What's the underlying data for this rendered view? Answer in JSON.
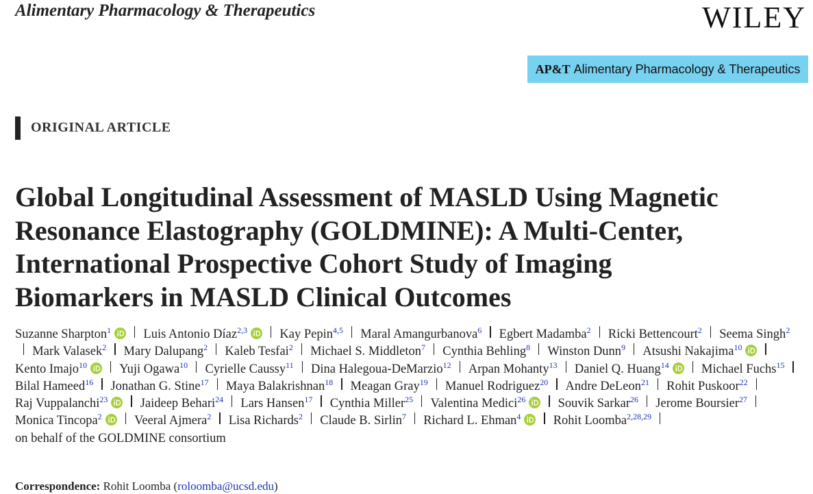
{
  "header": {
    "journal": "Alimentary Pharmacology & Therapeutics",
    "publisher": "WILEY"
  },
  "banner": {
    "logo": "AP&T",
    "text": "Alimentary Pharmacology & Therapeutics"
  },
  "section": "ORIGINAL ARTICLE",
  "title_lines": [
    "Global Longitudinal Assessment of MASLD Using Magnetic",
    "Resonance Elastography (GOLDMINE): A Multi-Center,",
    "International Prospective Cohort Study of Imaging",
    "Biomarkers in MASLD Clinical Outcomes"
  ],
  "authors": [
    {
      "name": "Suzanne Sharpton",
      "affil": "1",
      "orcid": true
    },
    {
      "name": "Luis Antonio Díaz",
      "affil": "2,3",
      "orcid": true
    },
    {
      "name": "Kay Pepin",
      "affil": "4,5",
      "orcid": false
    },
    {
      "name": "Maral Amangurbanova",
      "affil": "6",
      "orcid": false
    },
    {
      "name": "Egbert Madamba",
      "affil": "2",
      "orcid": false
    },
    {
      "name": "Ricki Bettencourt",
      "affil": "2",
      "orcid": false
    },
    {
      "name": "Seema Singh",
      "affil": "2",
      "orcid": false
    },
    {
      "name": "Mark Valasek",
      "affil": "2",
      "orcid": false
    },
    {
      "name": "Mary Dalupang",
      "affil": "2",
      "orcid": false
    },
    {
      "name": "Kaleb Tesfai",
      "affil": "2",
      "orcid": false
    },
    {
      "name": "Michael S. Middleton",
      "affil": "7",
      "orcid": false
    },
    {
      "name": "Cynthia Behling",
      "affil": "8",
      "orcid": false
    },
    {
      "name": "Winston Dunn",
      "affil": "9",
      "orcid": false
    },
    {
      "name": "Atsushi Nakajima",
      "affil": "10",
      "orcid": true
    },
    {
      "name": "Kento Imajo",
      "affil": "10",
      "orcid": true
    },
    {
      "name": "Yuji Ogawa",
      "affil": "10",
      "orcid": false
    },
    {
      "name": "Cyrielle Caussy",
      "affil": "11",
      "orcid": false
    },
    {
      "name": "Dina Halegoua-DeMarzio",
      "affil": "12",
      "orcid": false
    },
    {
      "name": "Arpan Mohanty",
      "affil": "13",
      "orcid": false
    },
    {
      "name": "Daniel Q. Huang",
      "affil": "14",
      "orcid": true
    },
    {
      "name": "Michael Fuchs",
      "affil": "15",
      "orcid": false
    },
    {
      "name": "Bilal Hameed",
      "affil": "16",
      "orcid": false
    },
    {
      "name": "Jonathan G. Stine",
      "affil": "17",
      "orcid": false
    },
    {
      "name": "Maya Balakrishnan",
      "affil": "18",
      "orcid": false
    },
    {
      "name": "Meagan Gray",
      "affil": "19",
      "orcid": false
    },
    {
      "name": "Manuel Rodriguez",
      "affil": "20",
      "orcid": false
    },
    {
      "name": "Andre DeLeon",
      "affil": "21",
      "orcid": false
    },
    {
      "name": "Rohit Puskoor",
      "affil": "22",
      "orcid": false
    },
    {
      "name": "Raj Vuppalanchi",
      "affil": "23",
      "orcid": true
    },
    {
      "name": "Jaideep Behari",
      "affil": "24",
      "orcid": false
    },
    {
      "name": "Lars Hansen",
      "affil": "17",
      "orcid": false
    },
    {
      "name": "Cynthia Miller",
      "affil": "25",
      "orcid": false
    },
    {
      "name": "Valentina Medici",
      "affil": "26",
      "orcid": true
    },
    {
      "name": "Souvik Sarkar",
      "affil": "26",
      "orcid": false
    },
    {
      "name": "Jerome Boursier",
      "affil": "27",
      "orcid": false
    },
    {
      "name": "Monica Tincopa",
      "affil": "2",
      "orcid": true
    },
    {
      "name": "Veeral Ajmera",
      "affil": "2",
      "orcid": false
    },
    {
      "name": "Lisa Richards",
      "affil": "2",
      "orcid": false
    },
    {
      "name": "Claude B. Sirlin",
      "affil": "7",
      "orcid": false
    },
    {
      "name": "Richard L. Ehman",
      "affil": "4",
      "orcid": true
    },
    {
      "name": "Rohit Loomba",
      "affil": "2,28,29",
      "orcid": false
    }
  ],
  "consortium": "on behalf of the GOLDMINE consortium",
  "correspondence": {
    "label": "Correspondence:",
    "name": "Rohit Loomba",
    "open_paren": "(",
    "email": "roloomba@ucsd.edu",
    "close_paren": ")"
  }
}
